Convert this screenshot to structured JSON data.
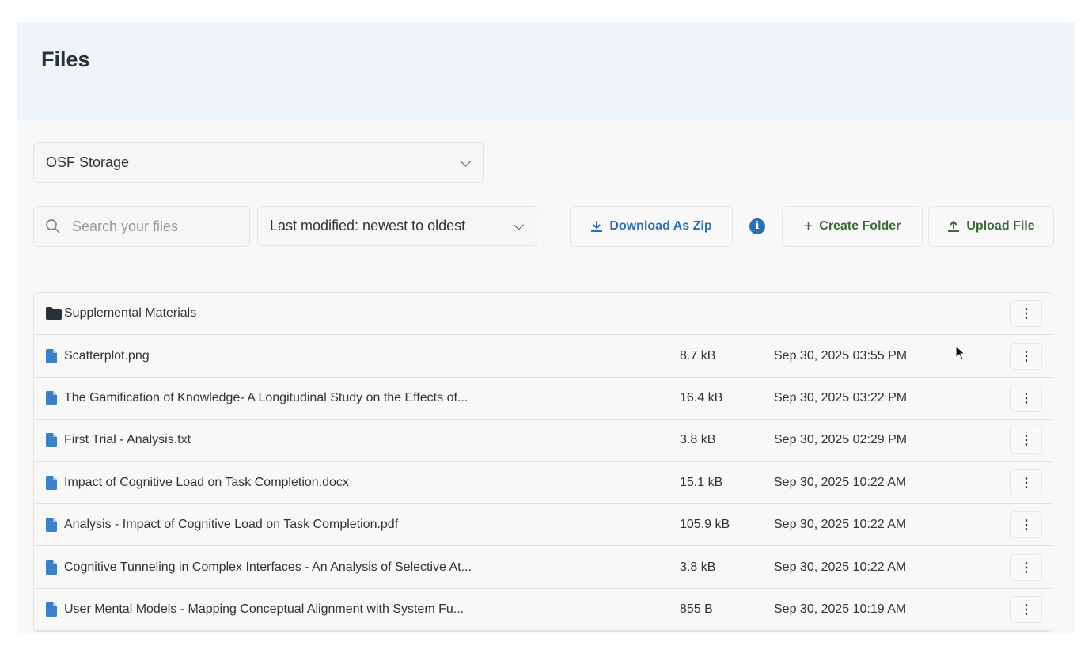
{
  "header": {
    "title": "Files"
  },
  "storage_select": {
    "value": "OSF Storage"
  },
  "search": {
    "placeholder": "Search your files"
  },
  "sort_select": {
    "value": "Last modified: newest to oldest"
  },
  "toolbar": {
    "download_zip": "Download As Zip",
    "create_folder": "Create Folder",
    "upload_file": "Upload File"
  },
  "colors": {
    "blue": "#2d6fb3",
    "green": "#3a6b35",
    "header_bg": "#eef4f8",
    "file_icon": "#3b7fc4",
    "folder_icon": "#263238"
  },
  "rows": [
    {
      "type": "folder",
      "name": "Supplemental Materials",
      "size": "",
      "date": ""
    },
    {
      "type": "file",
      "name": "Scatterplot.png",
      "size": "8.7 kB",
      "date": "Sep 30, 2025 03:55 PM"
    },
    {
      "type": "file",
      "name": "The Gamification of Knowledge- A Longitudinal Study on the Effects of...",
      "size": "16.4 kB",
      "date": "Sep 30, 2025 03:22 PM"
    },
    {
      "type": "file",
      "name": "First Trial - Analysis.txt",
      "size": "3.8 kB",
      "date": "Sep 30, 2025 02:29 PM"
    },
    {
      "type": "file",
      "name": "Impact of Cognitive Load on Task Completion.docx",
      "size": "15.1 kB",
      "date": "Sep 30, 2025 10:22 AM"
    },
    {
      "type": "file",
      "name": "Analysis - Impact of Cognitive Load on Task Completion.pdf",
      "size": "105.9 kB",
      "date": "Sep 30, 2025 10:22 AM"
    },
    {
      "type": "file",
      "name": "Cognitive Tunneling in Complex Interfaces - An Analysis of Selective At...",
      "size": "3.8 kB",
      "date": "Sep 30, 2025 10:22 AM"
    },
    {
      "type": "file",
      "name": "User Mental Models - Mapping Conceptual Alignment with System Fu...",
      "size": "855 B",
      "date": "Sep 30, 2025 10:19 AM"
    }
  ]
}
